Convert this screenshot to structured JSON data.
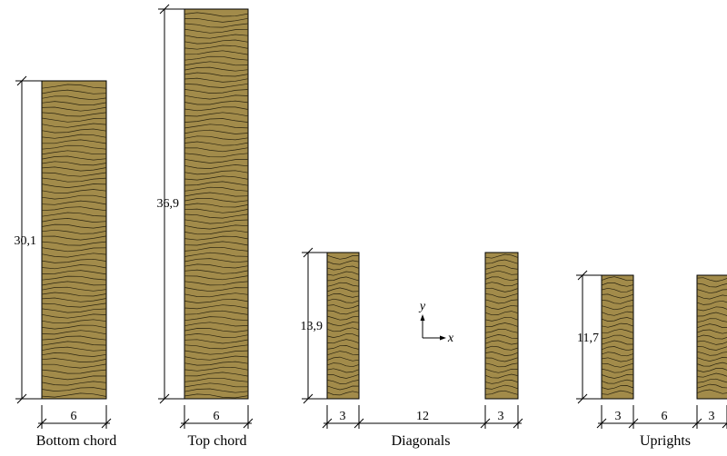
{
  "colors": {
    "wood": "#a28b4a",
    "grain": "#2a2410",
    "line": "#000000"
  },
  "sections": [
    {
      "caption": "Bottom chord",
      "height": "30,1",
      "widths": [
        "6"
      ]
    },
    {
      "caption": "Top chord",
      "height": "36,9",
      "widths": [
        "6"
      ]
    },
    {
      "caption": "Diagonals",
      "height": "13,9",
      "widths": [
        "3",
        "12",
        "3"
      ]
    },
    {
      "caption": "Uprights",
      "height": "11,7",
      "widths": [
        "3",
        "6",
        "3"
      ]
    }
  ],
  "axes": {
    "y": "y",
    "x": "x"
  }
}
